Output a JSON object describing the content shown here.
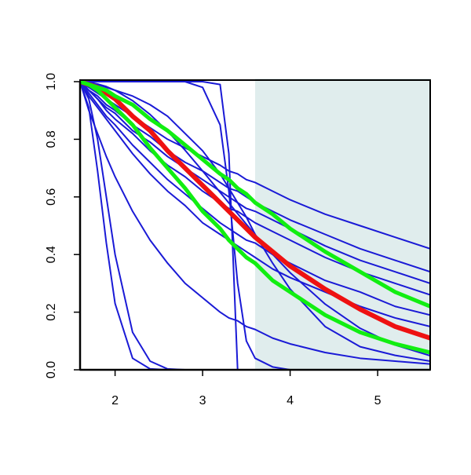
{
  "chart_data": {
    "type": "line",
    "x": [
      1.6,
      1.7,
      1.8,
      1.9,
      2.0,
      2.2,
      2.4,
      2.6,
      2.8,
      3.0,
      3.2,
      3.3,
      3.4,
      3.5,
      3.6,
      3.8,
      4.0,
      4.4,
      4.8,
      5.2,
      5.6
    ],
    "xlim": [
      1.6,
      5.6
    ],
    "ylim": [
      0,
      1
    ],
    "xticks": [
      2,
      3,
      4,
      5
    ],
    "yticks": [
      {
        "value": 0,
        "label": "0.0"
      },
      0.2,
      0.4,
      0.6,
      0.8,
      {
        "value": 1,
        "label": "1.0"
      }
    ],
    "grid": false,
    "shaded_region": {
      "x": [
        3.6,
        5.6
      ],
      "color": "#e0eded"
    },
    "series": [
      {
        "color": "#1a1ad6",
        "linewidth": 2,
        "values": [
          1,
          0.91,
          0.69,
          0.44,
          0.23,
          0.04,
          0.003,
          0,
          0,
          0,
          0,
          0,
          0,
          0,
          0,
          0,
          0,
          0,
          0,
          0,
          0
        ]
      },
      {
        "color": "#1a1ad6",
        "linewidth": 2,
        "values": [
          1,
          0.94,
          0.8,
          0.6,
          0.4,
          0.13,
          0.03,
          0.003,
          0,
          0,
          0,
          0,
          0,
          0,
          0,
          0,
          0,
          0,
          0,
          0,
          0
        ]
      },
      {
        "color": "#1a1ad6",
        "linewidth": 2,
        "values": [
          1,
          0.9,
          0.82,
          0.74,
          0.67,
          0.55,
          0.45,
          0.37,
          0.3,
          0.25,
          0.2,
          0.18,
          0.17,
          0.15,
          0.14,
          0.11,
          0.09,
          0.06,
          0.04,
          0.03,
          0.02
        ]
      },
      {
        "color": "#1a1ad6",
        "linewidth": 2,
        "values": [
          1,
          1,
          1,
          1,
          1,
          1,
          1,
          1,
          1,
          1,
          0.99,
          0.75,
          0,
          0,
          0,
          0,
          0,
          0,
          0,
          0,
          0
        ]
      },
      {
        "color": "#1a1ad6",
        "linewidth": 2,
        "values": [
          1,
          1,
          1,
          1,
          1,
          1,
          1,
          1,
          1,
          0.98,
          0.85,
          0.62,
          0.3,
          0.1,
          0.04,
          0.01,
          0,
          0,
          0,
          0,
          0
        ]
      },
      {
        "color": "#1a1ad6",
        "linewidth": 2,
        "values": [
          1,
          0.995,
          0.99,
          0.98,
          0.97,
          0.95,
          0.92,
          0.88,
          0.82,
          0.76,
          0.68,
          0.63,
          0.58,
          0.53,
          0.47,
          0.37,
          0.28,
          0.15,
          0.08,
          0.05,
          0.03
        ]
      },
      {
        "color": "#1a1ad6",
        "linewidth": 2,
        "values": [
          1,
          0.998,
          0.992,
          0.983,
          0.97,
          0.934,
          0.886,
          0.828,
          0.762,
          0.69,
          0.616,
          0.579,
          0.542,
          0.505,
          0.469,
          0.401,
          0.337,
          0.228,
          0.144,
          0.086,
          0.049
        ]
      },
      {
        "color": "#1a1ad6",
        "linewidth": 2,
        "values": [
          1,
          0.98,
          0.96,
          0.94,
          0.92,
          0.88,
          0.84,
          0.8,
          0.77,
          0.74,
          0.71,
          0.69,
          0.68,
          0.66,
          0.65,
          0.62,
          0.59,
          0.54,
          0.5,
          0.46,
          0.42
        ]
      },
      {
        "color": "#1a1ad6",
        "linewidth": 2,
        "values": [
          1,
          0.97,
          0.95,
          0.92,
          0.9,
          0.85,
          0.81,
          0.76,
          0.72,
          0.69,
          0.65,
          0.63,
          0.62,
          0.6,
          0.58,
          0.55,
          0.52,
          0.47,
          0.42,
          0.38,
          0.34
        ]
      },
      {
        "color": "#1a1ad6",
        "linewidth": 2,
        "values": [
          1,
          0.97,
          0.94,
          0.91,
          0.89,
          0.83,
          0.79,
          0.74,
          0.7,
          0.66,
          0.62,
          0.6,
          0.58,
          0.56,
          0.55,
          0.52,
          0.49,
          0.43,
          0.38,
          0.34,
          0.3
        ]
      },
      {
        "color": "#1a1ad6",
        "linewidth": 2,
        "values": [
          1,
          0.97,
          0.94,
          0.9,
          0.87,
          0.82,
          0.76,
          0.71,
          0.67,
          0.62,
          0.58,
          0.56,
          0.55,
          0.53,
          0.51,
          0.48,
          0.45,
          0.39,
          0.34,
          0.3,
          0.26
        ]
      },
      {
        "color": "#1a1ad6",
        "linewidth": 2,
        "values": [
          1,
          0.96,
          0.92,
          0.88,
          0.85,
          0.78,
          0.72,
          0.66,
          0.61,
          0.56,
          0.51,
          0.49,
          0.47,
          0.45,
          0.44,
          0.4,
          0.37,
          0.31,
          0.27,
          0.22,
          0.19
        ]
      },
      {
        "color": "#1a1ad6",
        "linewidth": 2,
        "values": [
          1,
          0.95,
          0.91,
          0.87,
          0.83,
          0.75,
          0.68,
          0.62,
          0.57,
          0.51,
          0.47,
          0.45,
          0.43,
          0.41,
          0.39,
          0.35,
          0.32,
          0.27,
          0.22,
          0.18,
          0.15
        ]
      },
      {
        "color": "#ee1111",
        "linewidth": 6,
        "values": [
          1,
          0.99,
          0.98,
          0.96,
          0.94,
          0.88,
          0.83,
          0.76,
          0.7,
          0.64,
          0.58,
          0.55,
          0.52,
          0.49,
          0.46,
          0.41,
          0.36,
          0.28,
          0.21,
          0.15,
          0.11
        ]
      },
      {
        "color": "#11ee11",
        "linewidth": 5,
        "values": [
          1,
          0.99,
          0.97,
          0.94,
          0.91,
          0.85,
          0.77,
          0.7,
          0.63,
          0.55,
          0.49,
          0.45,
          0.42,
          0.39,
          0.37,
          0.31,
          0.27,
          0.19,
          0.13,
          0.09,
          0.06
        ]
      },
      {
        "color": "#11ee11",
        "linewidth": 5,
        "values": [
          1,
          0.99,
          0.98,
          0.97,
          0.95,
          0.92,
          0.87,
          0.83,
          0.78,
          0.73,
          0.68,
          0.66,
          0.63,
          0.61,
          0.58,
          0.54,
          0.49,
          0.41,
          0.34,
          0.27,
          0.22
        ]
      }
    ]
  }
}
